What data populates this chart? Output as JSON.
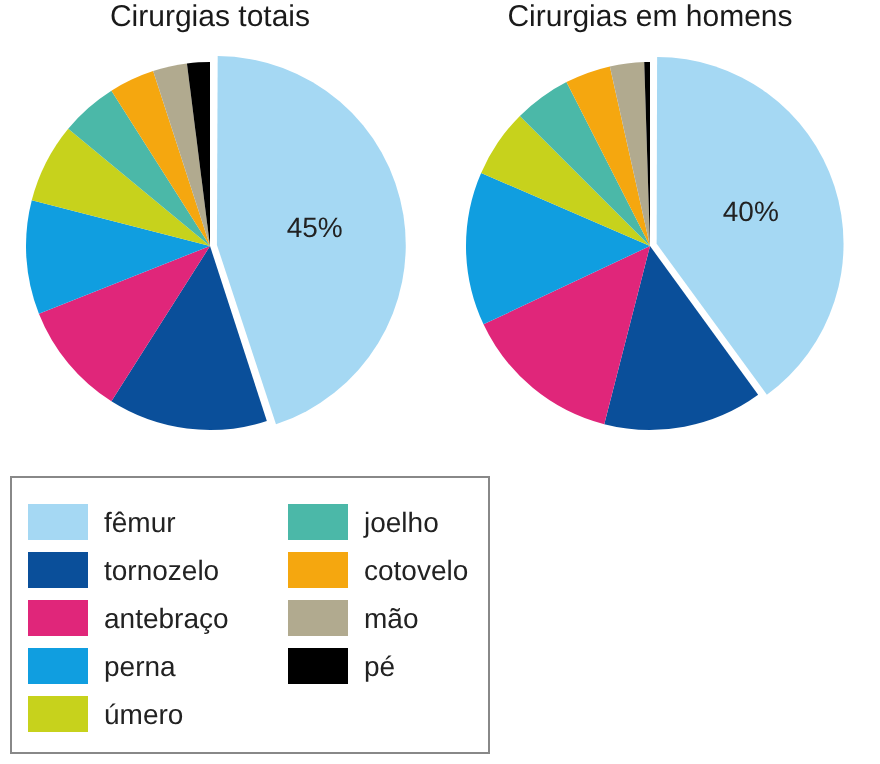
{
  "chart_data": {
    "type": "pie",
    "categories": [
      "fêmur",
      "tornozelo",
      "antebraço",
      "perna",
      "úmero",
      "joelho",
      "cotovelo",
      "mão",
      "pé"
    ],
    "colors": [
      "#a5d8f3",
      "#0a4f9a",
      "#e0267a",
      "#109ee0",
      "#c7d21c",
      "#4bb8a8",
      "#f5a70f",
      "#b1aa8f",
      "#000000"
    ],
    "series": [
      {
        "name": "Cirurgias totais",
        "values": [
          45,
          14,
          10,
          10,
          7,
          5,
          4,
          3,
          2
        ],
        "value_labels": [
          "45%",
          null,
          null,
          null,
          null,
          null,
          null,
          null,
          null
        ]
      },
      {
        "name": "Cirurgias em homens",
        "values": [
          40,
          14,
          14,
          13.5,
          6,
          5,
          4,
          3,
          0.5
        ],
        "value_labels": [
          "40%",
          null,
          null,
          null,
          null,
          null,
          null,
          null,
          null
        ]
      }
    ],
    "legend": "bottom"
  }
}
